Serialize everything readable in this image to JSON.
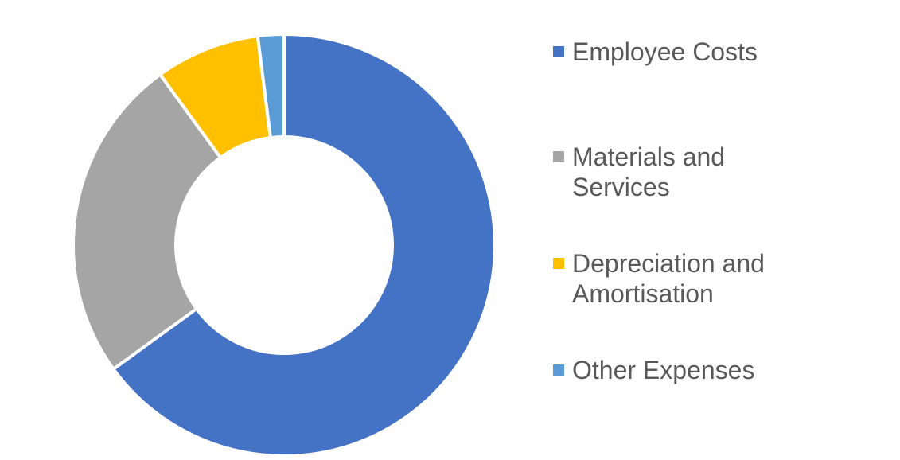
{
  "chart_data": {
    "type": "donut",
    "categories": [
      "Employee Costs",
      "Materials and Services",
      "Depreciation and Amortisation",
      "Other Expenses"
    ],
    "values": [
      65,
      25,
      8,
      2
    ],
    "colors": [
      "#4472c4",
      "#a5a5a5",
      "#ffc000",
      "#5b9bd5"
    ],
    "legend": "right"
  }
}
